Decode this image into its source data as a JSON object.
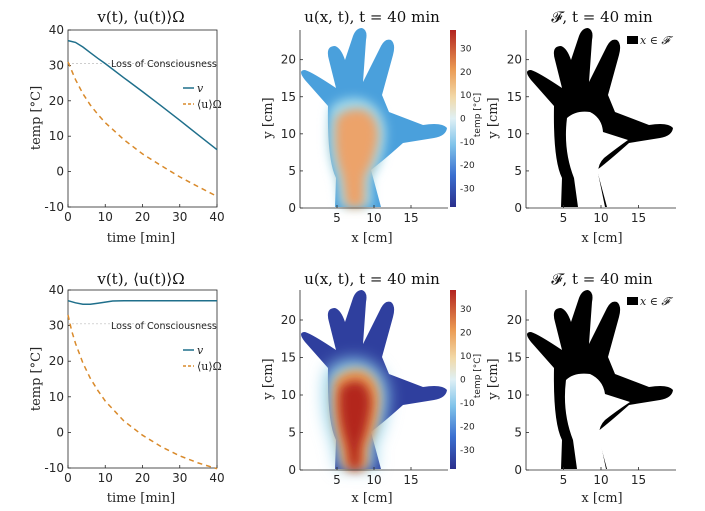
{
  "chart_data": [
    {
      "type": "line",
      "title": "v(t), ⟨u(t)⟩Ω",
      "xlabel": "time [min]",
      "ylabel": "temp [°C]",
      "xlim": [
        0,
        40
      ],
      "ylim": [
        -10,
        40
      ],
      "xticks": [
        "0",
        "10",
        "20",
        "30",
        "40"
      ],
      "yticks": [
        "-10",
        "0",
        "10",
        "20",
        "30",
        "40"
      ],
      "threshold": {
        "value": 30.5,
        "label": "Loss of Consciousness"
      },
      "series": [
        {
          "name": "v",
          "color": "#1f6f8b",
          "style": "solid",
          "x": [
            0,
            2,
            4,
            6,
            8,
            10,
            15,
            20,
            25,
            30,
            35,
            40
          ],
          "y": [
            37,
            36.5,
            35.2,
            33.6,
            32.0,
            30.5,
            26.5,
            22.6,
            18.6,
            14.5,
            10.3,
            6.2
          ]
        },
        {
          "name": "⟨u⟩Ω",
          "color": "#d98a2b",
          "style": "dashed",
          "x": [
            0,
            1,
            2,
            4,
            6,
            8,
            10,
            15,
            20,
            25,
            30,
            35,
            40
          ],
          "y": [
            31,
            28.5,
            26.0,
            22.0,
            18.8,
            16.2,
            13.8,
            9.0,
            5.0,
            1.7,
            -1.5,
            -4.3,
            -7.0
          ]
        }
      ]
    },
    {
      "type": "heatmap",
      "title": "u(x, t), t = 40 min",
      "xlabel": "x [cm]",
      "ylabel": "y [cm]",
      "xticks": [
        "5",
        "10",
        "15"
      ],
      "yticks": [
        "0",
        "5",
        "10",
        "15",
        "20"
      ],
      "colorbar": {
        "label": "temp [°C]",
        "ticks": [
          "30",
          "20",
          "10",
          "0",
          "-10",
          "-20",
          "-30"
        ]
      }
    },
    {
      "type": "heatmap",
      "title": "𝓕, t = 40 min",
      "xlabel": "x [cm]",
      "ylabel": "y [cm]",
      "xticks": [
        "5",
        "10",
        "15"
      ],
      "yticks": [
        "0",
        "5",
        "10",
        "15",
        "20"
      ],
      "legend": "x ∈ 𝓕"
    },
    {
      "type": "line",
      "title": "v(t), ⟨u(t)⟩Ω",
      "xlabel": "time [min]",
      "ylabel": "temp [°C]",
      "xlim": [
        0,
        40
      ],
      "ylim": [
        -10,
        40
      ],
      "xticks": [
        "0",
        "10",
        "20",
        "30",
        "40"
      ],
      "yticks": [
        "-10",
        "0",
        "10",
        "20",
        "30",
        "40"
      ],
      "threshold": {
        "value": 30.5,
        "label": "Loss of Consciousness"
      },
      "series": [
        {
          "name": "v",
          "color": "#1f6f8b",
          "style": "solid",
          "x": [
            0,
            2,
            4,
            6,
            8,
            10,
            12,
            15,
            20,
            30,
            40
          ],
          "y": [
            37,
            36.4,
            36.0,
            36.0,
            36.3,
            36.6,
            36.9,
            37,
            37,
            37,
            37
          ]
        },
        {
          "name": "⟨u⟩Ω",
          "color": "#d98a2b",
          "style": "dashed",
          "x": [
            0,
            1,
            2,
            4,
            6,
            8,
            10,
            15,
            20,
            25,
            30,
            35,
            40
          ],
          "y": [
            33,
            28.5,
            25.0,
            19.5,
            15.2,
            11.8,
            8.8,
            3.2,
            -0.8,
            -4.0,
            -6.6,
            -8.6,
            -10.2
          ]
        }
      ]
    },
    {
      "type": "heatmap",
      "title": "u(x, t), t = 40 min",
      "xlabel": "x [cm]",
      "ylabel": "y [cm]",
      "xticks": [
        "5",
        "10",
        "15"
      ],
      "yticks": [
        "0",
        "5",
        "10",
        "15",
        "20"
      ],
      "colorbar": {
        "label": "temp [°C]",
        "ticks": [
          "30",
          "20",
          "10",
          "0",
          "-10",
          "-20",
          "-30"
        ]
      }
    },
    {
      "type": "heatmap",
      "title": "𝓕, t = 40 min",
      "xlabel": "x [cm]",
      "ylabel": "y [cm]",
      "xticks": [
        "5",
        "10",
        "15"
      ],
      "yticks": [
        "0",
        "5",
        "10",
        "15",
        "20"
      ],
      "legend": "x ∈ 𝓕"
    }
  ]
}
